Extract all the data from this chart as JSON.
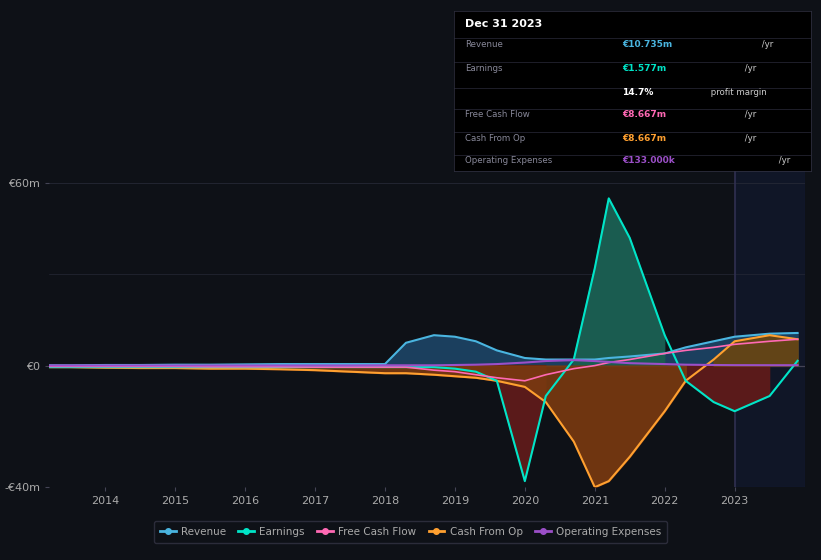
{
  "bg_color": "#0e1117",
  "plot_bg_color": "#0e1117",
  "grid_color": "#252836",
  "text_color": "#aaaaaa",
  "ylim": [
    -40,
    65
  ],
  "years": [
    2013.2,
    2013.5,
    2014.0,
    2014.5,
    2015.0,
    2015.5,
    2016.0,
    2016.5,
    2017.0,
    2017.5,
    2018.0,
    2018.3,
    2018.7,
    2019.0,
    2019.3,
    2019.6,
    2020.0,
    2020.3,
    2020.7,
    2021.0,
    2021.2,
    2021.5,
    2022.0,
    2022.3,
    2022.7,
    2023.0,
    2023.5,
    2023.9
  ],
  "revenue": [
    0.1,
    0.1,
    0.2,
    0.2,
    0.3,
    0.3,
    0.4,
    0.5,
    0.5,
    0.5,
    0.5,
    7.5,
    10.0,
    9.5,
    8.0,
    5.0,
    2.5,
    2.0,
    2.0,
    2.0,
    2.5,
    3.0,
    4.0,
    6.0,
    8.0,
    9.5,
    10.5,
    10.735
  ],
  "earnings": [
    -0.5,
    -0.5,
    -0.5,
    -0.5,
    -0.5,
    -0.5,
    -0.5,
    -0.5,
    -0.5,
    -0.5,
    -0.5,
    -0.5,
    -0.5,
    -1.0,
    -2.0,
    -5.0,
    -38.0,
    -10.0,
    2.0,
    32.0,
    55.0,
    42.0,
    10.0,
    -5.0,
    -12.0,
    -15.0,
    -10.0,
    1.577
  ],
  "free_cash_flow": [
    -0.3,
    -0.3,
    -0.3,
    -0.3,
    -0.3,
    -0.4,
    -0.4,
    -0.4,
    -0.5,
    -0.5,
    -0.5,
    -0.5,
    -1.5,
    -2.0,
    -3.0,
    -4.0,
    -5.0,
    -3.0,
    -1.0,
    0.0,
    1.0,
    2.0,
    4.0,
    5.0,
    6.0,
    7.0,
    8.0,
    8.667
  ],
  "cash_from_op": [
    -0.5,
    -0.5,
    -0.7,
    -0.8,
    -0.8,
    -1.0,
    -1.0,
    -1.2,
    -1.5,
    -2.0,
    -2.5,
    -2.5,
    -3.0,
    -3.5,
    -4.0,
    -5.0,
    -7.0,
    -12.0,
    -25.0,
    -40.0,
    -38.0,
    -30.0,
    -15.0,
    -5.0,
    2.0,
    8.0,
    10.0,
    8.667
  ],
  "op_expenses": [
    0.05,
    0.05,
    0.05,
    0.05,
    0.05,
    0.05,
    0.05,
    0.05,
    0.05,
    0.05,
    0.1,
    0.1,
    0.1,
    0.2,
    0.3,
    0.5,
    1.0,
    1.5,
    1.8,
    1.5,
    1.2,
    0.8,
    0.5,
    0.3,
    0.2,
    0.15,
    0.13,
    0.133
  ],
  "revenue_color": "#4ab5e0",
  "earnings_color": "#00e5c8",
  "fcf_color": "#ff69b4",
  "cfo_color": "#ffa030",
  "opex_color": "#9b4fc8",
  "revenue_fill": "#1b3f5e",
  "earnings_fill_pos": "#1a5c50",
  "earnings_fill_neg": "#5a1a1a",
  "cfo_fill_neg": "#7a3a10",
  "cfo_fill_pos": "#6a4510"
}
